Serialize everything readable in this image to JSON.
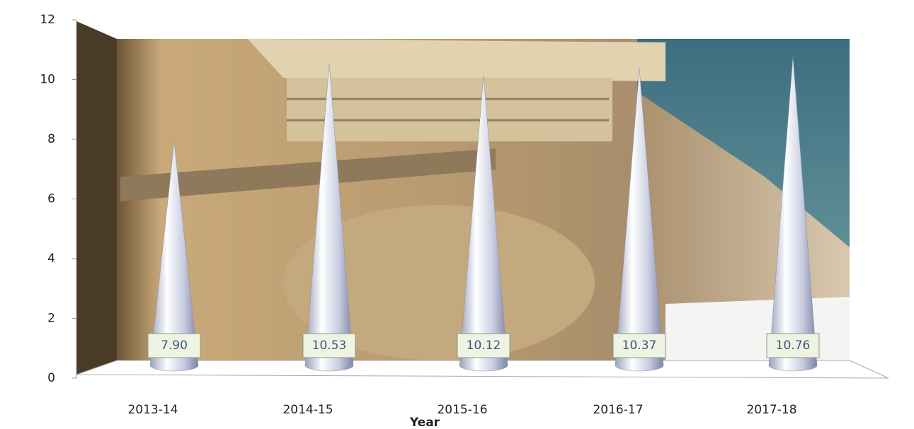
{
  "chart_data": {
    "type": "cone",
    "x_label": "Year",
    "categories": [
      "2013-14",
      "2014-15",
      "2015-16",
      "2016-17",
      "2017-18"
    ],
    "values": [
      7.9,
      10.53,
      10.12,
      10.37,
      10.76
    ],
    "value_labels": [
      "7.90",
      "10.53",
      "10.12",
      "10.37",
      "10.76"
    ],
    "ylim": [
      0,
      12
    ],
    "yticks": [
      0,
      2,
      4,
      6,
      8,
      10,
      12
    ]
  }
}
